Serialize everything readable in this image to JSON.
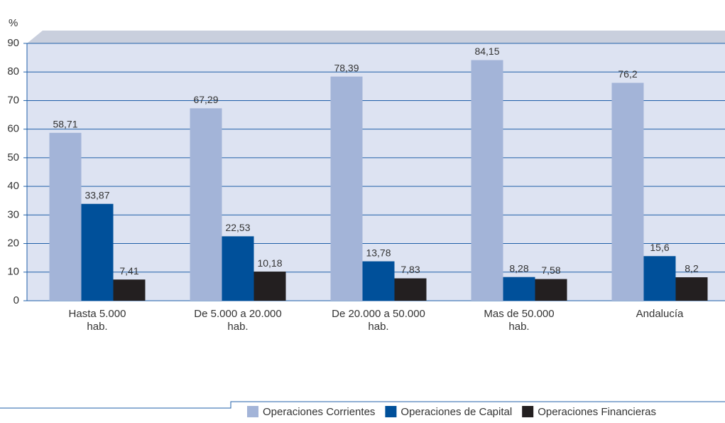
{
  "chart_data": {
    "type": "bar",
    "y_label": "%",
    "categories": [
      "Hasta 5.000\nhab.",
      "De 5.000 a 20.000\nhab.",
      "De 20.000 a 50.000\nhab.",
      "Mas de 50.000\nhab.",
      "Andalucía"
    ],
    "series": [
      {
        "name": "Operaciones Corrientes",
        "color": "#a3b4d8",
        "values": [
          58.71,
          67.29,
          78.39,
          84.15,
          76.2
        ],
        "value_labels": [
          "58,71",
          "67,29",
          "78,39",
          "84,15",
          "76,2"
        ]
      },
      {
        "name": "Operaciones de Capital",
        "color": "#00509a",
        "values": [
          33.87,
          22.53,
          13.78,
          8.28,
          15.6
        ],
        "value_labels": [
          "33,87",
          "22,53",
          "13,78",
          "8,28",
          "15,6"
        ]
      },
      {
        "name": "Operaciones Financieras",
        "color": "#231f20",
        "values": [
          7.41,
          10.18,
          7.83,
          7.58,
          8.2
        ],
        "value_labels": [
          "7,41",
          "10,18",
          "7,83",
          "7,58",
          "8,2"
        ]
      }
    ],
    "ylim": [
      0,
      90
    ],
    "yticks": [
      0,
      10,
      20,
      30,
      40,
      50,
      60,
      70,
      80,
      90
    ],
    "grid": true
  }
}
